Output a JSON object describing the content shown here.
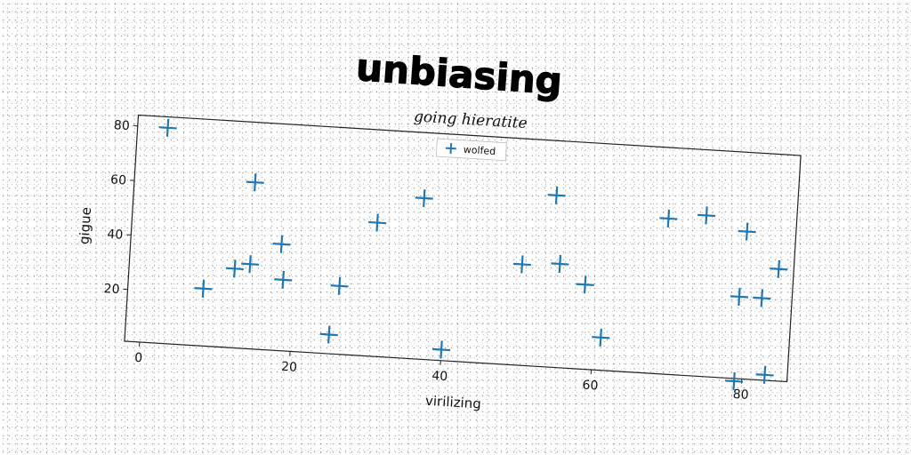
{
  "chart_data": {
    "type": "scatter",
    "title": "unbiasing",
    "subtitle": "going hieratite",
    "xlabel": "virilizing",
    "ylabel": "gigue",
    "xlim": [
      -2,
      86
    ],
    "ylim": [
      1,
      84
    ],
    "xticks": [
      0,
      20,
      40,
      60,
      80
    ],
    "yticks": [
      20,
      40,
      60,
      80
    ],
    "grid": false,
    "legend_position": "upper center",
    "series": [
      {
        "name": "wolfed",
        "marker": "plus",
        "color": "#1f77b4",
        "points": [
          {
            "x": 2,
            "y": 80
          },
          {
            "x": 8,
            "y": 22
          },
          {
            "x": 12,
            "y": 30
          },
          {
            "x": 14,
            "y": 62
          },
          {
            "x": 14,
            "y": 32
          },
          {
            "x": 18,
            "y": 40
          },
          {
            "x": 18.5,
            "y": 27
          },
          {
            "x": 25,
            "y": 8
          },
          {
            "x": 26,
            "y": 26
          },
          {
            "x": 30.5,
            "y": 50
          },
          {
            "x": 36.5,
            "y": 60
          },
          {
            "x": 40,
            "y": 5
          },
          {
            "x": 50,
            "y": 38
          },
          {
            "x": 54,
            "y": 64
          },
          {
            "x": 55,
            "y": 39
          },
          {
            "x": 58.5,
            "y": 32
          },
          {
            "x": 61,
            "y": 13
          },
          {
            "x": 69,
            "y": 58
          },
          {
            "x": 74,
            "y": 60
          },
          {
            "x": 79.5,
            "y": 55
          },
          {
            "x": 79,
            "y": 31
          },
          {
            "x": 82,
            "y": 31
          },
          {
            "x": 84,
            "y": 42
          },
          {
            "x": 79,
            "y": 0
          },
          {
            "x": 83,
            "y": 3
          }
        ]
      }
    ]
  }
}
